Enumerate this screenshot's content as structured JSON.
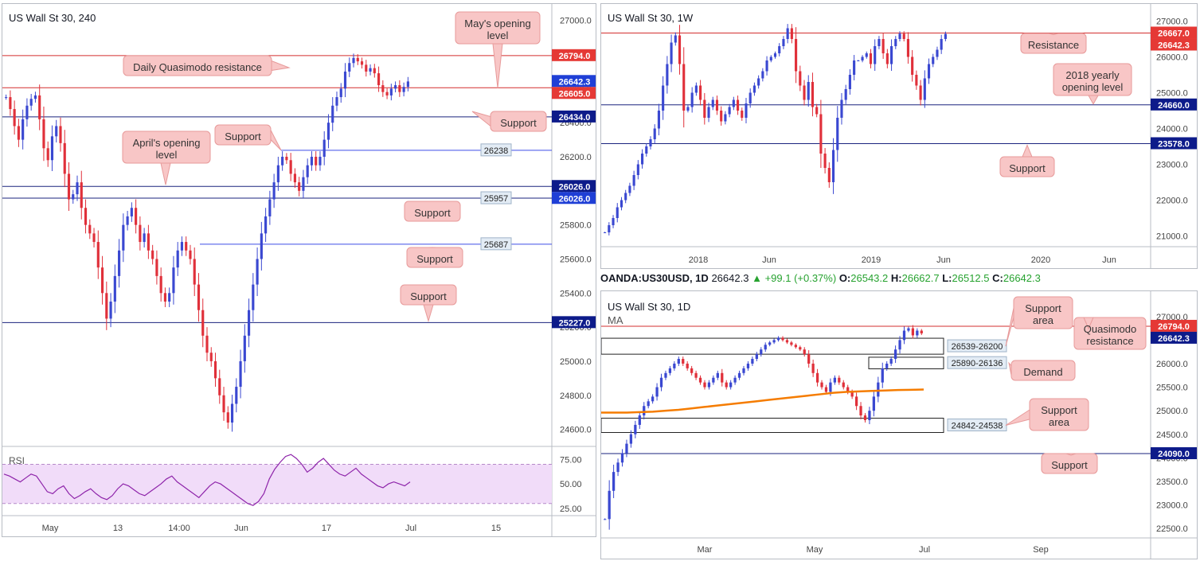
{
  "colors": {
    "bull": "#3a48d1",
    "bear": "#e0303a",
    "red_line": "#d32f2f",
    "navy_line": "#1a237e",
    "blue_line": "#3d4ce6",
    "callout_bg": "#f8c6c6",
    "callout_border": "#e79a9a",
    "rsi_line": "#8e24aa",
    "rsi_band": "#f1dcf9",
    "ma": "#f57c00",
    "label_red": "#e53935",
    "label_blue": "#1f3fd6",
    "label_navy": "#0d1b8a",
    "label_gray": "#e3ecf5"
  },
  "header": {
    "symbol": "OANDA:US30USD, 1D",
    "last": "26642.3",
    "change": "+99.1 (+0.37%)",
    "o_label": "O:",
    "o": "26543.2",
    "h_label": "H:",
    "h": "26662.7",
    "l_label": "L:",
    "l": "26512.5",
    "c_label": "C:",
    "c": "26642.3"
  },
  "panels": {
    "h4": {
      "title": "US Wall St 30, 240",
      "rsi_label": "RSI",
      "axis_labels": [
        "27000.0",
        "26800.0",
        "26600.0",
        "26400.0",
        "26200.0",
        "26000.0",
        "25800.0",
        "25600.0",
        "25400.0",
        "25200.0",
        "25000.0",
        "24800.0",
        "24600.0"
      ],
      "rsi_axis_labels": [
        "75.00",
        "50.00",
        "25.00"
      ],
      "x_labels": [
        "May",
        "13",
        "14:00",
        "Jun",
        "17",
        "Jul",
        "15"
      ],
      "price_tags": [
        "26794.0",
        "26642.3",
        "26605.0",
        "26434.0",
        "26026.0",
        "26026.0",
        "25227.0"
      ],
      "level_tags": [
        "26238",
        "25957",
        "25687"
      ],
      "callouts": [
        "May's opening level",
        "Daily Quasimodo resistance",
        "Support",
        "Support",
        "April's opening level",
        "Support",
        "Support",
        "Support"
      ]
    },
    "weekly": {
      "title": "US Wall St 30, 1W",
      "axis_labels": [
        "27000.0",
        "26000.0",
        "25000.0",
        "24000.0",
        "23000.0",
        "22000.0",
        "21000.0"
      ],
      "x_labels": [
        "2018",
        "Jun",
        "2019",
        "Jun",
        "2020",
        "Jun"
      ],
      "price_tags": [
        "26667.0",
        "26642.3",
        "24660.0",
        "23578.0"
      ],
      "callouts": [
        "Resistance",
        "2018 yearly opening level",
        "Support"
      ]
    },
    "daily": {
      "title": "US Wall St 30, 1D",
      "ma_label": "MA",
      "axis_labels": [
        "27000.0",
        "26500.0",
        "26000.0",
        "25500.0",
        "25000.0",
        "24500.0",
        "24000.0",
        "23500.0",
        "23000.0",
        "22500.0"
      ],
      "x_labels": [
        "Mar",
        "May",
        "Jul",
        "Sep"
      ],
      "price_tags": [
        "26794.0",
        "26642.3",
        "24090.0"
      ],
      "zone_tags": [
        "26539-26200",
        "25890-26136",
        "24842-24538"
      ],
      "callouts": [
        "Support area",
        "Quasimodo resistance",
        "Demand",
        "Support area",
        "Support"
      ]
    }
  },
  "chart_data": [
    {
      "type": "candlestick",
      "title": "US Wall St 30, 240",
      "ylim": [
        24500,
        27050
      ],
      "x": [
        "May",
        "13",
        "14:00",
        "Jun",
        "17",
        "Jul",
        "15"
      ],
      "path": [
        26550,
        26480,
        26380,
        26300,
        26420,
        26500,
        26540,
        26560,
        26420,
        26250,
        26180,
        26320,
        26380,
        26280,
        26100,
        25950,
        25980,
        26050,
        25900,
        25800,
        25750,
        25700,
        25550,
        25400,
        25250,
        25350,
        25500,
        25650,
        25800,
        25850,
        25900,
        25800,
        25700,
        25750,
        25650,
        25600,
        25500,
        25400,
        25350,
        25400,
        25550,
        25650,
        25700,
        25650,
        25600,
        25450,
        25300,
        25150,
        25050,
        25000,
        24900,
        24800,
        24700,
        24640,
        24750,
        24850,
        25000,
        25150,
        25300,
        25450,
        25600,
        25750,
        25850,
        25950,
        26050,
        26150,
        26200,
        26180,
        26100,
        26050,
        26000,
        26080,
        26150,
        26200,
        26150,
        26200,
        26300,
        26400,
        26500,
        26550,
        26600,
        26700,
        26750,
        26780,
        26760,
        26740,
        26700,
        26720,
        26690,
        26620,
        26580,
        26560,
        26600,
        26620,
        26580,
        26610,
        26642
      ],
      "levels": [
        26794,
        26605,
        26434,
        26238,
        26026,
        25957,
        25687,
        25227
      ],
      "rsi": {
        "ylim": [
          20,
          85
        ],
        "values": [
          60,
          58,
          55,
          52,
          56,
          60,
          58,
          50,
          42,
          40,
          45,
          48,
          40,
          35,
          38,
          42,
          45,
          40,
          36,
          34,
          38,
          45,
          50,
          48,
          44,
          40,
          38,
          42,
          46,
          50,
          55,
          58,
          52,
          48,
          44,
          40,
          36,
          42,
          48,
          52,
          50,
          46,
          42,
          38,
          34,
          30,
          28,
          32,
          40,
          55,
          65,
          72,
          78,
          80,
          76,
          70,
          62,
          66,
          72,
          76,
          70,
          64,
          60,
          58,
          62,
          66,
          60,
          56,
          52,
          48,
          46,
          50,
          52,
          50,
          48,
          52
        ]
      }
    },
    {
      "type": "candlestick",
      "title": "US Wall St 30, 1W",
      "ylim": [
        20700,
        27300
      ],
      "x": [
        "2018",
        "Jun",
        "2019",
        "Jun",
        "2020",
        "Jun"
      ],
      "path": [
        21100,
        21300,
        21500,
        21800,
        22000,
        22200,
        22400,
        22700,
        23000,
        23300,
        23500,
        23700,
        24000,
        24500,
        25200,
        25800,
        26400,
        26600,
        25800,
        24500,
        24600,
        25000,
        25200,
        24800,
        24300,
        24600,
        24800,
        24500,
        24200,
        24400,
        24600,
        24800,
        24500,
        24300,
        24700,
        25000,
        25200,
        25400,
        25600,
        25900,
        26000,
        26100,
        26300,
        26500,
        26800,
        26500,
        25600,
        25200,
        24800,
        25300,
        24600,
        24400,
        23300,
        22900,
        22500,
        23400,
        24300,
        24800,
        25100,
        25500,
        25900,
        25900,
        26000,
        26100,
        25800,
        26300,
        26500,
        26100,
        25800,
        26300,
        26500,
        26650,
        26500,
        26000,
        25500,
        25200,
        24800,
        25400,
        25800,
        26000,
        26200,
        26500,
        26642
      ],
      "levels": [
        26667,
        24660,
        23578
      ]
    },
    {
      "type": "candlestick",
      "title": "US Wall St 30, 1D",
      "ylim": [
        22300,
        27300
      ],
      "x": [
        "Mar",
        "May",
        "Jul",
        "Sep"
      ],
      "path": [
        22700,
        23300,
        23700,
        23900,
        24100,
        24300,
        24500,
        24700,
        24900,
        25100,
        25200,
        25300,
        25500,
        25700,
        25800,
        25900,
        26000,
        26100,
        26000,
        25900,
        25800,
        25700,
        25600,
        25500,
        25600,
        25700,
        25800,
        25600,
        25500,
        25600,
        25700,
        25800,
        25900,
        26000,
        26100,
        26200,
        26300,
        26400,
        26450,
        26500,
        26550,
        26500,
        26450,
        26400,
        26350,
        26300,
        26200,
        26000,
        25800,
        25600,
        25500,
        25400,
        25600,
        25700,
        25600,
        25500,
        25400,
        25300,
        25100,
        24900,
        24800,
        25000,
        25300,
        25600,
        25900,
        26000,
        26100,
        26300,
        26500,
        26700,
        26750,
        26600,
        26700,
        26642
      ],
      "ma": [
        24960,
        24960,
        24960,
        24970,
        24980,
        25000,
        25020,
        25050,
        25080,
        25110,
        25140,
        25170,
        25200,
        25230,
        25260,
        25290,
        25320,
        25350,
        25380,
        25400,
        25410,
        25420,
        25430,
        25440,
        25445,
        25450
      ],
      "zones": [
        [
          26200,
          26539
        ],
        [
          25890,
          26136
        ],
        [
          24538,
          24842
        ]
      ],
      "levels": [
        26794,
        24090
      ]
    }
  ]
}
